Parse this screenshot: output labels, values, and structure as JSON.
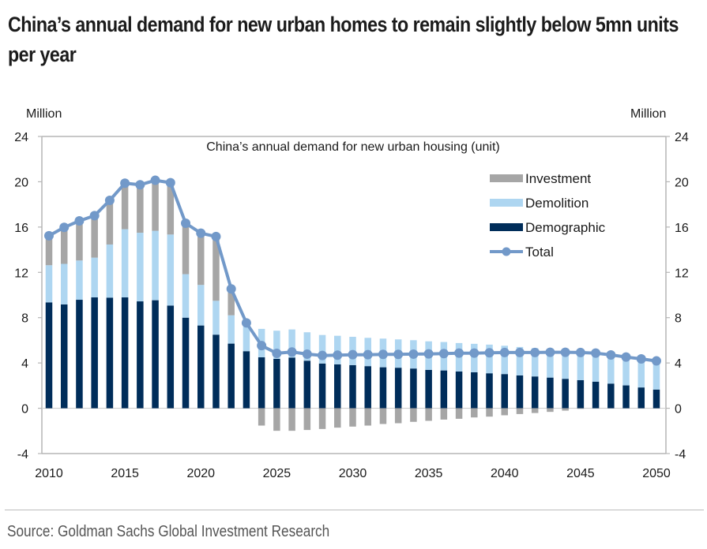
{
  "headline": "China’s annual demand for new urban homes to remain slightly below 5mn units per year",
  "source": "Source: Goldman Sachs Global Investment Research",
  "chart_data": {
    "type": "bar",
    "stacked": true,
    "title": "China’s annual demand for new urban housing (unit)",
    "ylabel_left": "Million",
    "ylabel_right": "Million",
    "xlabel": "",
    "ylim": [
      -4,
      24
    ],
    "yticks": [
      -4,
      0,
      4,
      8,
      12,
      16,
      20,
      24
    ],
    "xticks": [
      2010,
      2015,
      2020,
      2025,
      2030,
      2035,
      2040,
      2045,
      2050
    ],
    "grid": false,
    "legend_position": "top-right",
    "colors": {
      "Investment": "#a6a6a6",
      "Demolition": "#aed6f1",
      "Demographic": "#002d5a",
      "Total": "#7299c9"
    },
    "categories": [
      2010,
      2011,
      2012,
      2013,
      2014,
      2015,
      2016,
      2017,
      2018,
      2019,
      2020,
      2021,
      2022,
      2023,
      2024,
      2025,
      2026,
      2027,
      2028,
      2029,
      2030,
      2031,
      2032,
      2033,
      2034,
      2035,
      2036,
      2037,
      2038,
      2039,
      2040,
      2041,
      2042,
      2043,
      2044,
      2045,
      2046,
      2047,
      2048,
      2049,
      2050
    ],
    "series": [
      {
        "name": "Demographic",
        "kind": "bar",
        "values": [
          9.35,
          9.17,
          9.58,
          9.79,
          9.77,
          9.79,
          9.44,
          9.54,
          9.07,
          8.0,
          7.31,
          6.5,
          5.71,
          5.04,
          4.5,
          4.36,
          4.48,
          4.2,
          3.95,
          3.88,
          3.81,
          3.72,
          3.62,
          3.58,
          3.51,
          3.39,
          3.34,
          3.25,
          3.18,
          3.09,
          3.02,
          2.9,
          2.81,
          2.71,
          2.6,
          2.48,
          2.35,
          2.18,
          2.02,
          1.84,
          1.65
        ]
      },
      {
        "name": "Demolition",
        "kind": "bar",
        "values": [
          3.28,
          3.58,
          3.47,
          3.51,
          4.69,
          6.02,
          6.06,
          6.13,
          6.27,
          3.84,
          3.58,
          2.99,
          2.5,
          2.4,
          2.51,
          2.49,
          2.48,
          2.51,
          2.52,
          2.52,
          2.5,
          2.5,
          2.53,
          2.5,
          2.5,
          2.52,
          2.51,
          2.51,
          2.51,
          2.53,
          2.5,
          2.51,
          2.5,
          2.53,
          2.55,
          2.56,
          2.52,
          2.53,
          2.5,
          2.52,
          2.53
        ]
      },
      {
        "name": "Investment",
        "kind": "bar",
        "values": [
          2.6,
          3.22,
          3.5,
          3.71,
          3.9,
          4.06,
          4.23,
          4.46,
          4.58,
          4.5,
          4.57,
          5.67,
          2.33,
          0.1,
          -1.53,
          -1.99,
          -1.99,
          -1.92,
          -1.83,
          -1.71,
          -1.62,
          -1.53,
          -1.39,
          -1.32,
          -1.2,
          -1.11,
          -1.0,
          -0.93,
          -0.81,
          -0.74,
          -0.62,
          -0.51,
          -0.42,
          -0.32,
          -0.21,
          -0.05,
          0,
          0,
          0,
          0,
          0
        ]
      },
      {
        "name": "Total",
        "kind": "line",
        "values": [
          15.23,
          15.97,
          16.55,
          17.01,
          18.36,
          19.87,
          19.73,
          20.13,
          19.92,
          16.34,
          15.46,
          15.16,
          10.54,
          7.54,
          5.53,
          4.85,
          4.97,
          4.78,
          4.66,
          4.69,
          4.73,
          4.73,
          4.76,
          4.76,
          4.78,
          4.8,
          4.83,
          4.87,
          4.87,
          4.9,
          4.92,
          4.92,
          4.92,
          4.94,
          4.94,
          4.92,
          4.87,
          4.71,
          4.52,
          4.36,
          4.18
        ]
      }
    ],
    "legend": [
      "Investment",
      "Demolition",
      "Demographic",
      "Total"
    ]
  }
}
